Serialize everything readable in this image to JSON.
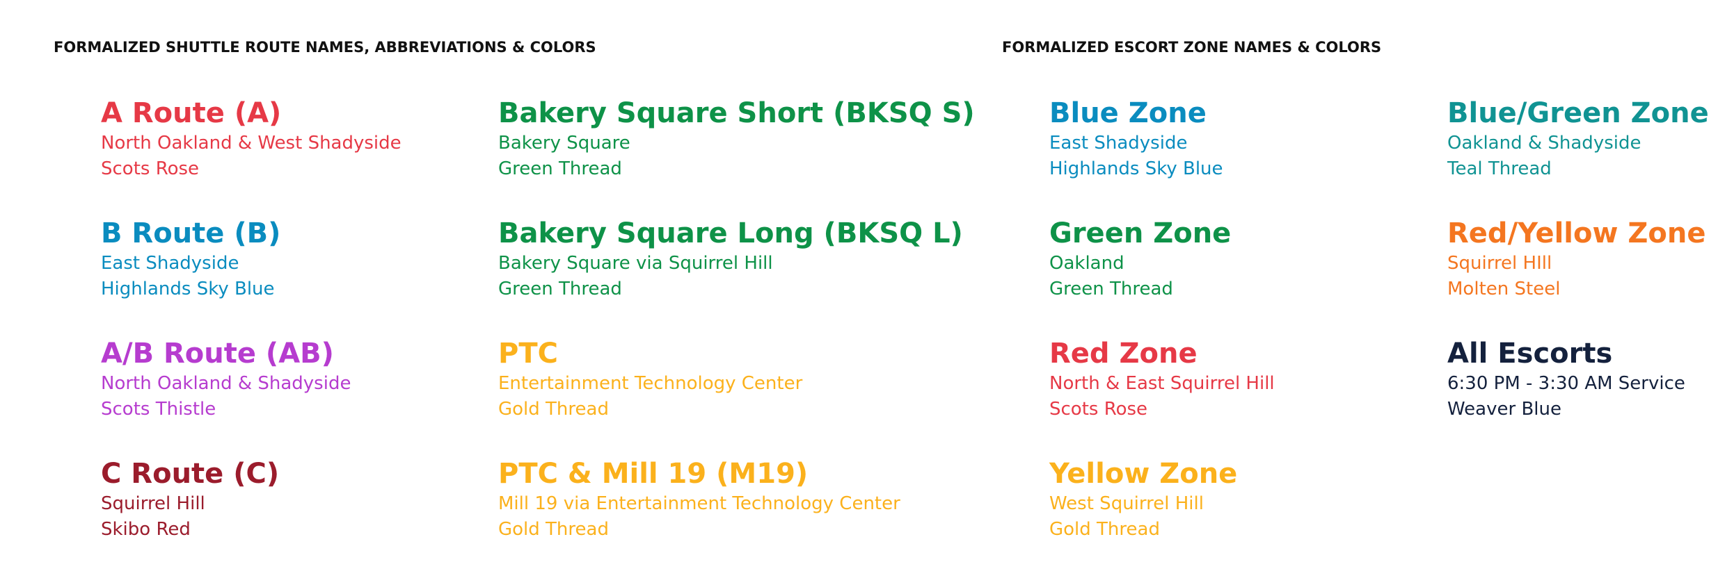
{
  "sections": [
    {
      "heading": "FORMALIZED SHUTTLE ROUTE NAMES,  ABBREVIATIONS & COLORS",
      "columns": [
        [
          {
            "name": "A Route (A)",
            "area": "North Oakland & West Shadyside",
            "color_name": "Scots Rose",
            "color": "#e63946"
          },
          {
            "name": "B Route (B)",
            "area": "East Shadyside",
            "color_name": "Highlands Sky Blue",
            "color": "#0a8cbf"
          },
          {
            "name": "A/B Route (AB)",
            "area": "North Oakland & Shadyside",
            "color_name": "Scots Thistle",
            "color": "#b63ccf"
          },
          {
            "name": "C Route (C)",
            "area": "Squirrel Hill",
            "color_name": "Skibo Red",
            "color": "#9b1c2c"
          }
        ],
        [
          {
            "name": "Bakery Square Short (BKSQ S)",
            "area": "Bakery Square",
            "color_name": "Green Thread",
            "color": "#0e9248"
          },
          {
            "name": "Bakery Square Long (BKSQ L)",
            "area": "Bakery Square via Squirrel Hill",
            "color_name": "Green Thread",
            "color": "#0e9248"
          },
          {
            "name": "PTC",
            "area": "Entertainment Technology Center",
            "color_name": "Gold Thread",
            "color": "#fbb11c"
          },
          {
            "name": "PTC & Mill 19 (M19)",
            "area": "Mill 19 via Entertainment Technology Center",
            "color_name": "Gold Thread",
            "color": "#fbb11c"
          }
        ]
      ]
    },
    {
      "heading": "FORMALIZED ESCORT ZONE NAMES & COLORS",
      "columns": [
        [
          {
            "name": "Blue Zone",
            "area": "East Shadyside",
            "color_name": "Highlands Sky Blue",
            "color": "#0a8cbf"
          },
          {
            "name": "Green Zone",
            "area": "Oakland",
            "color_name": "Green Thread",
            "color": "#0e9248"
          },
          {
            "name": "Red Zone",
            "area": "North & East Squirrel Hill",
            "color_name": "Scots Rose",
            "color": "#e63946"
          },
          {
            "name": "Yellow Zone",
            "area": "West Squirrel Hill",
            "color_name": "Gold Thread",
            "color": "#fbb11c"
          }
        ],
        [
          {
            "name": "Blue/Green Zone",
            "area": "Oakland & Shadyside",
            "color_name": "Teal Thread",
            "color": "#109393"
          },
          {
            "name": "Red/Yellow Zone",
            "area": "Squirrel HIll",
            "color_name": "Molten Steel",
            "color": "#f47620"
          },
          {
            "name": "All Escorts",
            "area": "6:30 PM - 3:30 AM Service",
            "color_name": "Weaver Blue",
            "color": "#14213d"
          }
        ]
      ]
    }
  ]
}
